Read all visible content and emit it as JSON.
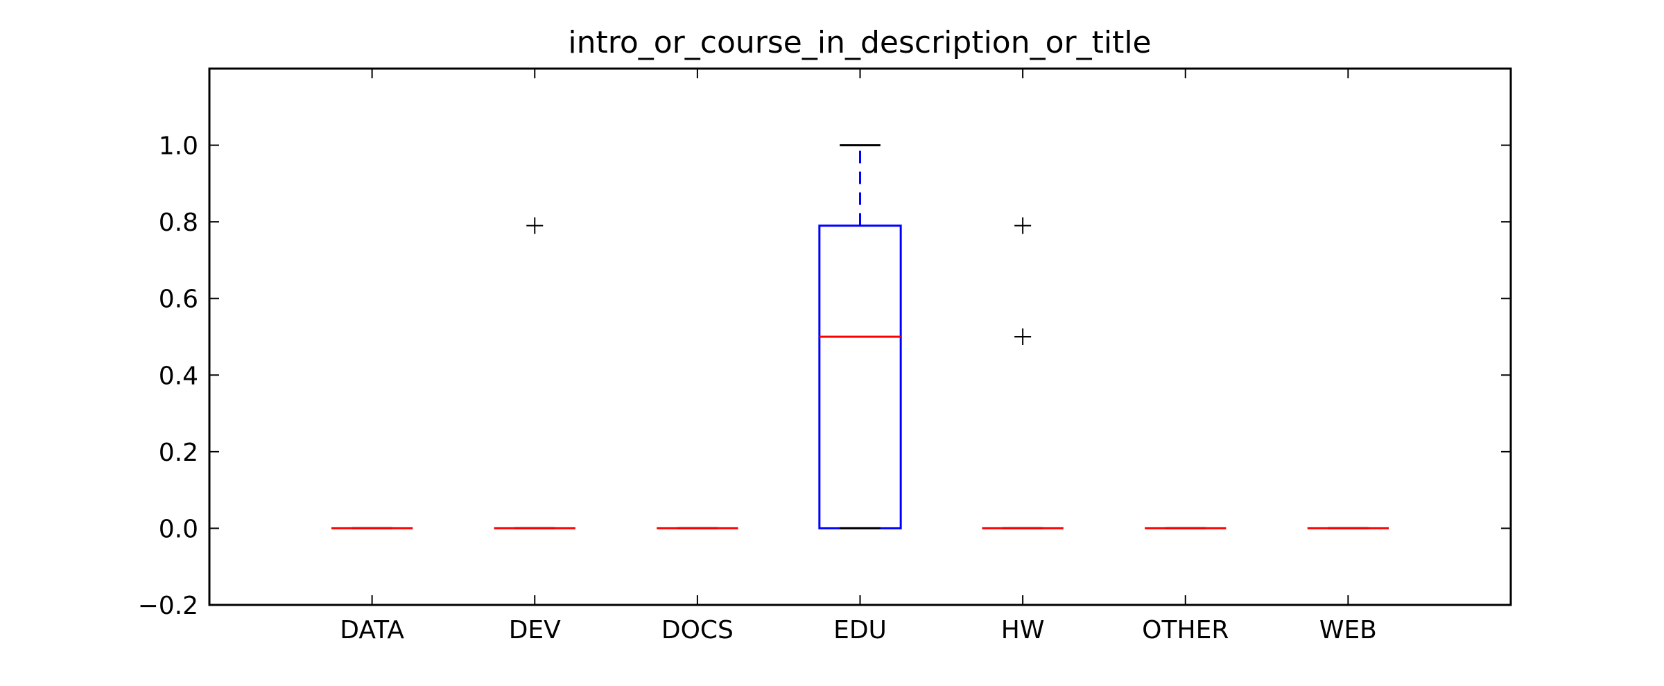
{
  "chart_data": {
    "type": "box",
    "title": "intro_or_course_in_description_or_title",
    "xlabel": "",
    "ylabel": "",
    "ylim": [
      -0.2,
      1.2
    ],
    "yticks": [
      -0.2,
      0.0,
      0.2,
      0.4,
      0.6,
      0.8,
      1.0
    ],
    "ytick_labels": [
      "−0.2",
      "0.0",
      "0.2",
      "0.4",
      "0.6",
      "0.8",
      "1.0"
    ],
    "categories": [
      "DATA",
      "DEV",
      "DOCS",
      "EDU",
      "HW",
      "OTHER",
      "WEB"
    ],
    "boxes": [
      {
        "category": "DATA",
        "whisker_low": 0.0,
        "q1": 0.0,
        "median": 0.0,
        "q3": 0.0,
        "whisker_high": 0.0,
        "outliers": []
      },
      {
        "category": "DEV",
        "whisker_low": 0.0,
        "q1": 0.0,
        "median": 0.0,
        "q3": 0.0,
        "whisker_high": 0.0,
        "outliers": [
          0.79
        ]
      },
      {
        "category": "DOCS",
        "whisker_low": 0.0,
        "q1": 0.0,
        "median": 0.0,
        "q3": 0.0,
        "whisker_high": 0.0,
        "outliers": []
      },
      {
        "category": "EDU",
        "whisker_low": 0.0,
        "q1": 0.0,
        "median": 0.5,
        "q3": 0.79,
        "whisker_high": 1.0,
        "outliers": []
      },
      {
        "category": "HW",
        "whisker_low": 0.0,
        "q1": 0.0,
        "median": 0.0,
        "q3": 0.0,
        "whisker_high": 0.0,
        "outliers": [
          0.79,
          0.5
        ]
      },
      {
        "category": "OTHER",
        "whisker_low": 0.0,
        "q1": 0.0,
        "median": 0.0,
        "q3": 0.0,
        "whisker_high": 0.0,
        "outliers": []
      },
      {
        "category": "WEB",
        "whisker_low": 0.0,
        "q1": 0.0,
        "median": 0.0,
        "q3": 0.0,
        "whisker_high": 0.0,
        "outliers": []
      }
    ],
    "grid": false,
    "colors": {
      "box": "#0000ff",
      "median": "#ff0000",
      "whisker": "#0000ff",
      "cap": "#000000",
      "outlier": "#000000",
      "axes": "#000000"
    }
  }
}
